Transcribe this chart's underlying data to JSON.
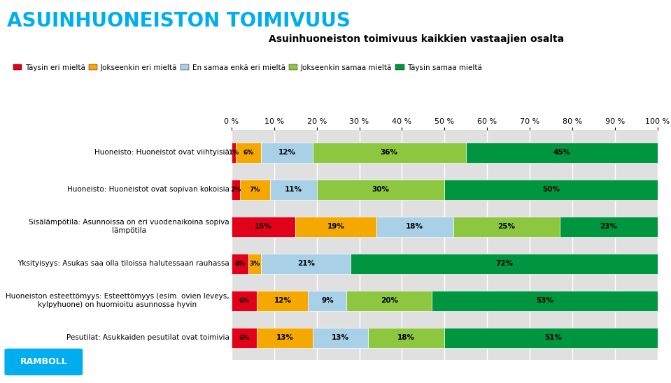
{
  "title_main": "ASUINHUONEISTON TOIMIVUUS",
  "title_sub": "Asuinhuoneiston toimivuus kaikkien vastaajien osalta",
  "categories": [
    "Huoneisto: Huoneistot ovat viihtyisiä",
    "Huoneisto: Huoneistot ovat sopivan kokoisia",
    "Sisälämpötila: Asunnoissa on eri vuodenaikoina sopiva\nlämpötila",
    "Yksityisyys: Asukas saa olla tiloissa halutessaan rauhassa",
    "Huoneiston esteettömyys: Esteettömyys (esim. ovien leveys,\nkylpyhuone) on huomioitu asunnossa hyvin",
    "Pesutilat: Asukkaiden pesutilat ovat toimivia"
  ],
  "legend_labels": [
    "Täysin eri mieltä",
    "Jokseenkin eri mieltä",
    "En samaa enkä eri mieltä",
    "Jokseenkin samaa mieltä",
    "Täysin samaa mieltä"
  ],
  "colors": [
    "#e2001a",
    "#f5a800",
    "#a8d0e6",
    "#8dc63f",
    "#009640"
  ],
  "data": [
    [
      1,
      6,
      12,
      36,
      45
    ],
    [
      2,
      7,
      11,
      30,
      50
    ],
    [
      15,
      19,
      18,
      25,
      23
    ],
    [
      4,
      3,
      21,
      0,
      72
    ],
    [
      6,
      12,
      9,
      20,
      53
    ],
    [
      6,
      13,
      13,
      18,
      51
    ]
  ],
  "bar_labels": [
    [
      "1%",
      "6%",
      "12%",
      "36%",
      "45%"
    ],
    [
      "2%",
      "7%",
      "11%",
      "30%",
      "50%"
    ],
    [
      "15%",
      "19%",
      "18%",
      "25%",
      "23%"
    ],
    [
      "4%",
      "3%",
      "21%",
      "",
      "72%"
    ],
    [
      "6%",
      "12%",
      "9%",
      "20%",
      "53%"
    ],
    [
      "6%",
      "13%",
      "13%",
      "18%",
      "51%"
    ]
  ],
  "title_color": "#00aeef",
  "background_color": "#ffffff",
  "plot_bg_color": "#e0e0e0",
  "bar_height": 0.55,
  "xlim": [
    0,
    100
  ],
  "xticks": [
    0,
    10,
    20,
    30,
    40,
    50,
    60,
    70,
    80,
    90,
    100
  ],
  "xtick_labels": [
    "0 %",
    "10 %",
    "20 %",
    "30 %",
    "40 %",
    "50 %",
    "60 %",
    "70 %",
    "80 %",
    "90 %",
    "100 %"
  ],
  "logo_color": "#00aeef",
  "logo_text": "RAMBOLL"
}
